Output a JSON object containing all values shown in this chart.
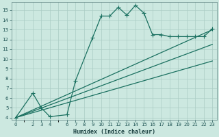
{
  "title": "",
  "xlabel": "Humidex (Indice chaleur)",
  "background_color": "#cce8e0",
  "grid_color": "#aaccc4",
  "line_color": "#1a7060",
  "xlim": [
    -0.5,
    23.5
  ],
  "ylim": [
    3.8,
    15.8
  ],
  "yticks": [
    4,
    5,
    6,
    7,
    8,
    9,
    10,
    11,
    12,
    13,
    14,
    15
  ],
  "xticks": [
    0,
    2,
    3,
    4,
    6,
    7,
    8,
    9,
    10,
    11,
    12,
    13,
    14,
    15,
    16,
    17,
    18,
    19,
    20,
    21,
    22,
    23
  ],
  "line1_x": [
    0,
    2,
    3,
    4,
    6,
    7,
    9,
    10,
    11,
    12,
    13,
    14,
    15,
    16,
    17,
    18,
    19,
    20,
    21,
    22,
    23
  ],
  "line1_y": [
    4,
    6.5,
    5.0,
    4.1,
    4.3,
    7.8,
    12.2,
    14.4,
    14.4,
    15.3,
    14.5,
    15.5,
    14.7,
    12.5,
    12.5,
    12.3,
    12.3,
    12.3,
    12.3,
    12.3,
    13.1
  ],
  "line2_x": [
    0,
    23
  ],
  "line2_y": [
    4.0,
    13.0
  ],
  "line3_x": [
    0,
    23
  ],
  "line3_y": [
    4.0,
    11.5
  ],
  "line4_x": [
    0,
    23
  ],
  "line4_y": [
    4.0,
    9.8
  ],
  "marker": "+",
  "marker_size": 4,
  "line_width": 0.9
}
